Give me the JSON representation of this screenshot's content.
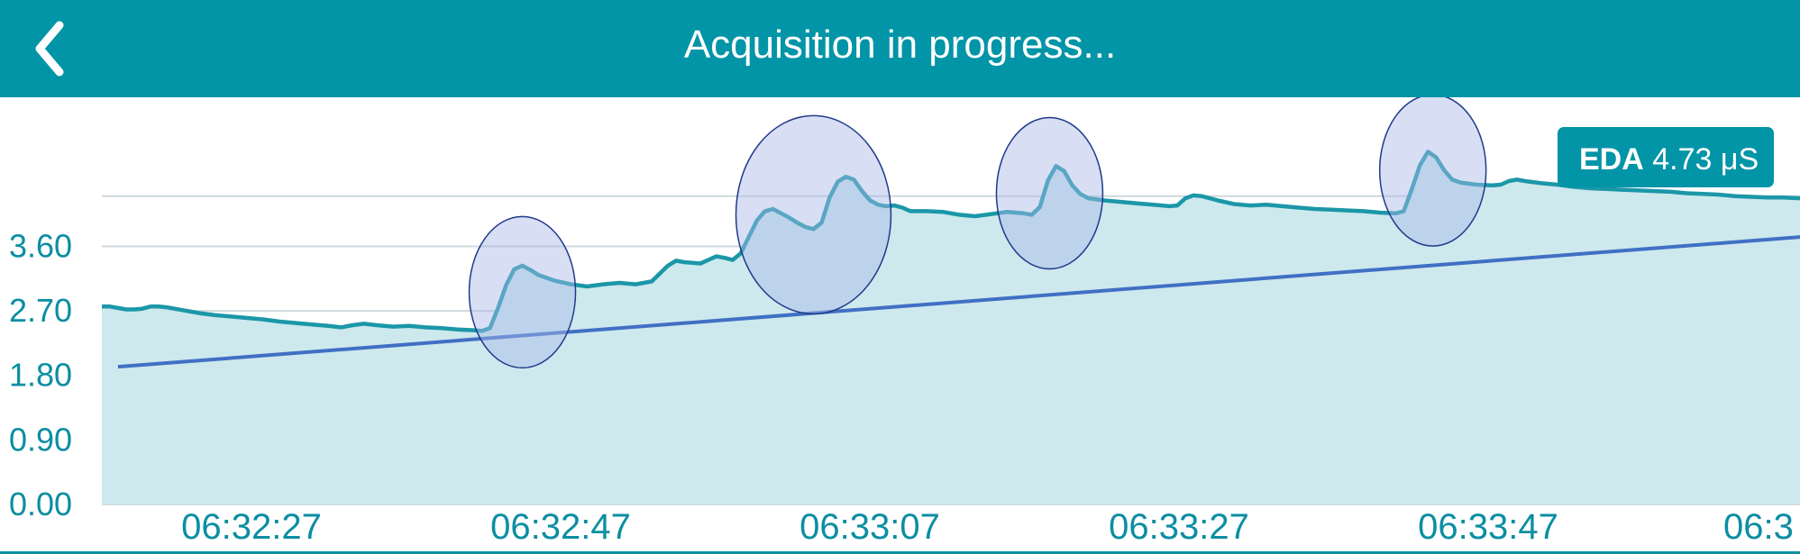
{
  "header": {
    "title": "Acquisition in progress...",
    "back_icon": "chevron-left-icon",
    "background": "#0294a7"
  },
  "chart_data": {
    "type": "area",
    "y_ticks": [
      "0.00",
      "0.90",
      "1.80",
      "2.70",
      "3.60"
    ],
    "x_ticks": [
      "06:32:27",
      "06:32:47",
      "06:33:07",
      "06:33:27",
      "06:33:47",
      "06:3"
    ],
    "ylim": [
      0,
      5.5
    ],
    "grid": true,
    "colors": {
      "line": "#1b97a8",
      "fill": "#cde9ee",
      "trend": "#4070c4",
      "highlight": "#a9b8e6",
      "grid": "#cfd8dc",
      "tick": "#0b8ea2"
    },
    "series": [
      {
        "points": [
          [
            0.0,
            2.76
          ],
          [
            0.5,
            2.76
          ],
          [
            1.0,
            2.74
          ],
          [
            1.5,
            2.72
          ],
          [
            2.0,
            2.72
          ],
          [
            2.5,
            2.73
          ],
          [
            3.0,
            2.76
          ],
          [
            3.5,
            2.76
          ],
          [
            4.0,
            2.75
          ],
          [
            5.0,
            2.71
          ],
          [
            6.0,
            2.67
          ],
          [
            7.0,
            2.64
          ],
          [
            8.0,
            2.62
          ],
          [
            9.0,
            2.6
          ],
          [
            10.0,
            2.58
          ],
          [
            11.0,
            2.55
          ],
          [
            12.0,
            2.53
          ],
          [
            13.0,
            2.51
          ],
          [
            14.0,
            2.49
          ],
          [
            14.8,
            2.47
          ],
          [
            15.5,
            2.5
          ],
          [
            16.2,
            2.52
          ],
          [
            17.0,
            2.5
          ],
          [
            18.0,
            2.48
          ],
          [
            19.0,
            2.49
          ],
          [
            20.0,
            2.47
          ],
          [
            21.0,
            2.46
          ],
          [
            22.0,
            2.44
          ],
          [
            23.0,
            2.43
          ],
          [
            23.5,
            2.42
          ],
          [
            24.0,
            2.46
          ],
          [
            24.5,
            2.74
          ],
          [
            25.0,
            3.06
          ],
          [
            25.5,
            3.28
          ],
          [
            26.0,
            3.33
          ],
          [
            26.5,
            3.27
          ],
          [
            27.0,
            3.2
          ],
          [
            28.0,
            3.12
          ],
          [
            29.0,
            3.07
          ],
          [
            30.0,
            3.04
          ],
          [
            31.0,
            3.07
          ],
          [
            32.0,
            3.09
          ],
          [
            33.0,
            3.07
          ],
          [
            34.0,
            3.11
          ],
          [
            35.0,
            3.33
          ],
          [
            35.5,
            3.4
          ],
          [
            36.0,
            3.38
          ],
          [
            37.0,
            3.36
          ],
          [
            37.5,
            3.41
          ],
          [
            38.0,
            3.46
          ],
          [
            38.5,
            3.44
          ],
          [
            39.0,
            3.41
          ],
          [
            39.5,
            3.5
          ],
          [
            40.0,
            3.73
          ],
          [
            40.5,
            3.96
          ],
          [
            41.0,
            4.09
          ],
          [
            41.5,
            4.12
          ],
          [
            42.0,
            4.06
          ],
          [
            42.5,
            4.0
          ],
          [
            43.0,
            3.93
          ],
          [
            43.5,
            3.87
          ],
          [
            44.0,
            3.84
          ],
          [
            44.5,
            3.93
          ],
          [
            45.0,
            4.28
          ],
          [
            45.5,
            4.5
          ],
          [
            46.0,
            4.57
          ],
          [
            46.5,
            4.53
          ],
          [
            47.0,
            4.37
          ],
          [
            47.5,
            4.24
          ],
          [
            48.0,
            4.18
          ],
          [
            48.5,
            4.16
          ],
          [
            49.0,
            4.17
          ],
          [
            49.5,
            4.14
          ],
          [
            50.0,
            4.09
          ],
          [
            51.0,
            4.09
          ],
          [
            52.0,
            4.08
          ],
          [
            53.0,
            4.04
          ],
          [
            54.0,
            4.02
          ],
          [
            55.0,
            4.05
          ],
          [
            56.0,
            4.08
          ],
          [
            57.0,
            4.06
          ],
          [
            57.5,
            4.04
          ],
          [
            58.0,
            4.15
          ],
          [
            58.5,
            4.52
          ],
          [
            59.0,
            4.72
          ],
          [
            59.5,
            4.65
          ],
          [
            60.0,
            4.45
          ],
          [
            60.5,
            4.33
          ],
          [
            61.0,
            4.27
          ],
          [
            62.0,
            4.24
          ],
          [
            63.0,
            4.22
          ],
          [
            64.0,
            4.2
          ],
          [
            65.0,
            4.18
          ],
          [
            66.0,
            4.16
          ],
          [
            66.5,
            4.17
          ],
          [
            67.0,
            4.27
          ],
          [
            67.5,
            4.31
          ],
          [
            68.0,
            4.3
          ],
          [
            69.0,
            4.24
          ],
          [
            70.0,
            4.19
          ],
          [
            71.0,
            4.17
          ],
          [
            72.0,
            4.18
          ],
          [
            73.0,
            4.16
          ],
          [
            74.0,
            4.14
          ],
          [
            75.0,
            4.12
          ],
          [
            76.0,
            4.11
          ],
          [
            77.0,
            4.1
          ],
          [
            78.0,
            4.09
          ],
          [
            79.0,
            4.07
          ],
          [
            80.0,
            4.06
          ],
          [
            80.5,
            4.09
          ],
          [
            81.0,
            4.4
          ],
          [
            81.5,
            4.73
          ],
          [
            82.0,
            4.92
          ],
          [
            82.5,
            4.84
          ],
          [
            83.0,
            4.66
          ],
          [
            83.5,
            4.53
          ],
          [
            84.0,
            4.49
          ],
          [
            85.0,
            4.46
          ],
          [
            86.0,
            4.45
          ],
          [
            86.5,
            4.46
          ],
          [
            87.0,
            4.51
          ],
          [
            87.5,
            4.53
          ],
          [
            88.0,
            4.51
          ],
          [
            89.0,
            4.48
          ],
          [
            90.0,
            4.46
          ],
          [
            91.0,
            4.43
          ],
          [
            92.0,
            4.41
          ],
          [
            93.0,
            4.4
          ],
          [
            94.0,
            4.39
          ],
          [
            95.0,
            4.38
          ],
          [
            96.0,
            4.37
          ],
          [
            97.0,
            4.36
          ],
          [
            98.0,
            4.34
          ],
          [
            99.0,
            4.33
          ],
          [
            100.0,
            4.32
          ],
          [
            101.0,
            4.3
          ],
          [
            102.0,
            4.29
          ],
          [
            103.0,
            4.28
          ],
          [
            104.0,
            4.28
          ],
          [
            105.0,
            4.27
          ]
        ]
      }
    ],
    "trend_line": [
      [
        1.0,
        1.92
      ],
      [
        105.0,
        3.73
      ]
    ],
    "highlight_regions": [
      {
        "x_center": 26.0,
        "y_center": 2.96
      },
      {
        "x_center": 44.0,
        "y_center": 4.04
      },
      {
        "x_center": 58.6,
        "y_center": 4.34
      },
      {
        "x_center": 82.3,
        "y_center": 4.66
      }
    ],
    "badge": {
      "label": "EDA",
      "value": "4.73 μS"
    }
  }
}
